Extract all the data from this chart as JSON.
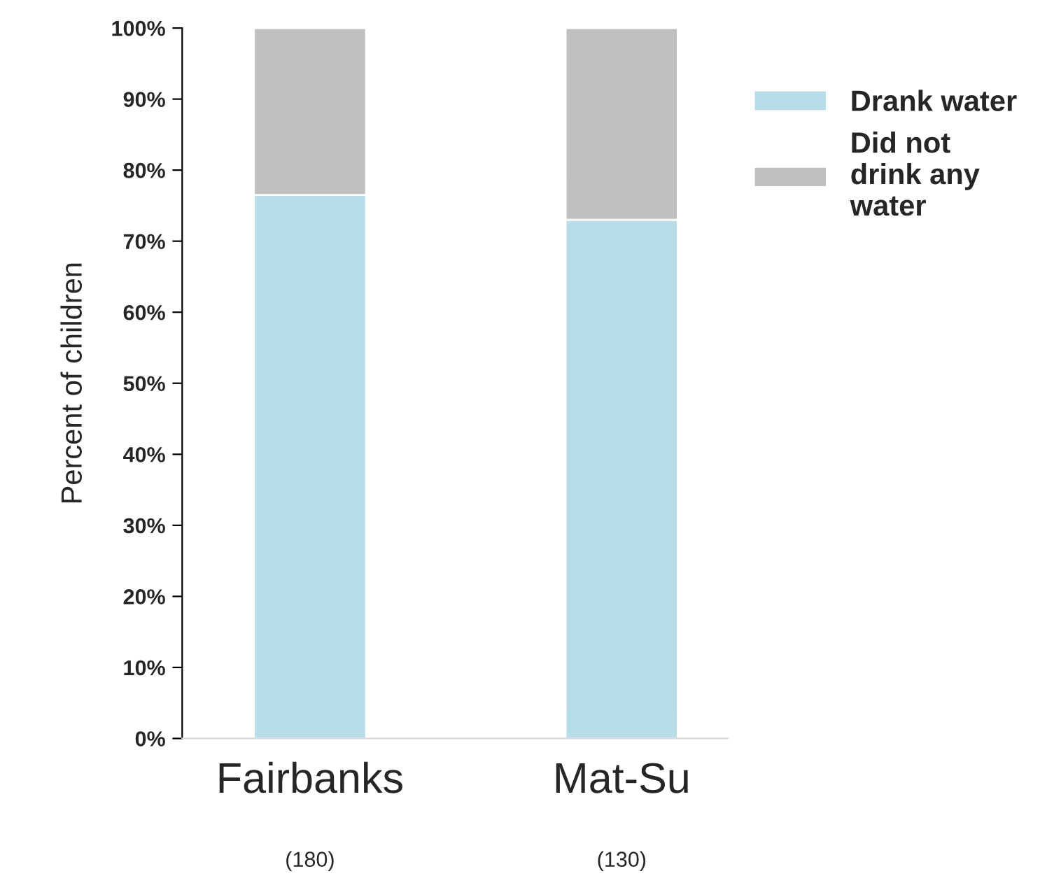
{
  "chart_data": {
    "type": "bar",
    "stacked": true,
    "ylabel": "Percent of children",
    "categories": [
      "Fairbanks",
      "Mat-Su"
    ],
    "series": [
      {
        "name": "Drank water",
        "color": "#b7dde8",
        "values": [
          76.5,
          73
        ]
      },
      {
        "name": "Did not\ndrink any\nwater",
        "color": "#bfbfbf",
        "values": [
          23.5,
          27
        ]
      }
    ],
    "ylim": [
      0,
      100
    ],
    "yticks": [
      {
        "value": 0,
        "label": "0%"
      },
      {
        "value": 10,
        "label": "10%"
      },
      {
        "value": 20,
        "label": "20%"
      },
      {
        "value": 30,
        "label": "30%"
      },
      {
        "value": 40,
        "label": "40%"
      },
      {
        "value": 50,
        "label": "50%"
      },
      {
        "value": 60,
        "label": "60%"
      },
      {
        "value": 70,
        "label": "70%"
      },
      {
        "value": 80,
        "label": "80%"
      },
      {
        "value": 90,
        "label": "90%"
      },
      {
        "value": 100,
        "label": "100%"
      }
    ],
    "annotations": [
      "(180)",
      "(130)"
    ],
    "grid": false,
    "legend": "right"
  }
}
